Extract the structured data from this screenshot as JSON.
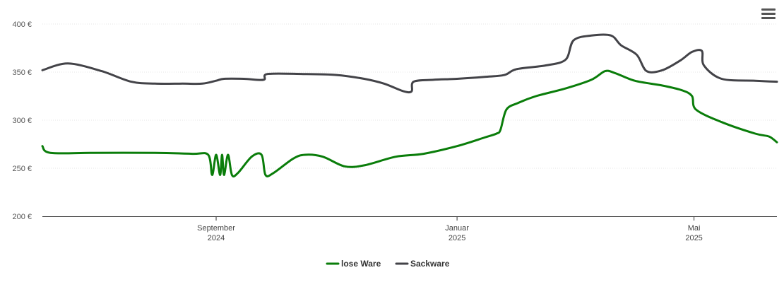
{
  "chart_data": {
    "type": "line",
    "title": "",
    "xlabel": "",
    "ylabel": "",
    "ylim": [
      200,
      400
    ],
    "yticks": [
      "200 €",
      "250 €",
      "300 €",
      "350 €",
      "400 €"
    ],
    "ytick_values": [
      200,
      250,
      300,
      350,
      400
    ],
    "xlim": [
      "2024-06-05",
      "2025-06-12"
    ],
    "xticks": [
      {
        "date": "2024-09-01",
        "label1": "September",
        "label2": "2024"
      },
      {
        "date": "2025-01-01",
        "label1": "Januar",
        "label2": "2025"
      },
      {
        "date": "2025-05-01",
        "label1": "Mai",
        "label2": "2025"
      }
    ],
    "grid": true,
    "legend": "bottom-center",
    "series": [
      {
        "name": "lose Ware",
        "color": "#0a7d0a",
        "points": [
          [
            "2024-06-05",
            273
          ],
          [
            "2024-06-09",
            266
          ],
          [
            "2024-07-01",
            266
          ],
          [
            "2024-08-01",
            266
          ],
          [
            "2024-08-20",
            265
          ],
          [
            "2024-08-28",
            264
          ],
          [
            "2024-08-30",
            243
          ],
          [
            "2024-09-01",
            264
          ],
          [
            "2024-09-03",
            243
          ],
          [
            "2024-09-04",
            264
          ],
          [
            "2024-09-05",
            243
          ],
          [
            "2024-09-07",
            264
          ],
          [
            "2024-09-09",
            243
          ],
          [
            "2024-09-12",
            245
          ],
          [
            "2024-09-19",
            262
          ],
          [
            "2024-09-24",
            264
          ],
          [
            "2024-09-26",
            243
          ],
          [
            "2024-09-30",
            245
          ],
          [
            "2024-10-10",
            260
          ],
          [
            "2024-10-16",
            264
          ],
          [
            "2024-10-25",
            262
          ],
          [
            "2024-11-05",
            252
          ],
          [
            "2024-11-15",
            253
          ],
          [
            "2024-12-01",
            262
          ],
          [
            "2024-12-15",
            265
          ],
          [
            "2025-01-01",
            273
          ],
          [
            "2025-01-15",
            282
          ],
          [
            "2025-01-21",
            286
          ],
          [
            "2025-01-23",
            290
          ],
          [
            "2025-01-26",
            311
          ],
          [
            "2025-02-01",
            318
          ],
          [
            "2025-02-10",
            325
          ],
          [
            "2025-02-25",
            333
          ],
          [
            "2025-03-10",
            342
          ],
          [
            "2025-03-17",
            351
          ],
          [
            "2025-03-22",
            349
          ],
          [
            "2025-04-01",
            341
          ],
          [
            "2025-04-15",
            336
          ],
          [
            "2025-04-25",
            331
          ],
          [
            "2025-04-30",
            325
          ],
          [
            "2025-05-02",
            311
          ],
          [
            "2025-05-15",
            298
          ],
          [
            "2025-06-01",
            286
          ],
          [
            "2025-06-08",
            283
          ],
          [
            "2025-06-12",
            277
          ]
        ]
      },
      {
        "name": "Sackware",
        "color": "#434348",
        "points": [
          [
            "2024-06-05",
            352
          ],
          [
            "2024-06-18",
            359
          ],
          [
            "2024-07-05",
            351
          ],
          [
            "2024-07-20",
            340
          ],
          [
            "2024-08-01",
            338
          ],
          [
            "2024-08-15",
            338
          ],
          [
            "2024-08-25",
            338
          ],
          [
            "2024-09-01",
            341
          ],
          [
            "2024-09-05",
            343
          ],
          [
            "2024-09-15",
            343
          ],
          [
            "2024-09-25",
            342
          ],
          [
            "2024-09-27",
            348
          ],
          [
            "2024-10-15",
            348
          ],
          [
            "2024-11-01",
            347
          ],
          [
            "2024-11-15",
            343
          ],
          [
            "2024-11-25",
            338
          ],
          [
            "2024-12-05",
            330
          ],
          [
            "2024-12-09",
            330
          ],
          [
            "2024-12-10",
            340
          ],
          [
            "2024-12-20",
            342
          ],
          [
            "2025-01-01",
            343
          ],
          [
            "2025-01-15",
            345
          ],
          [
            "2025-01-25",
            347
          ],
          [
            "2025-01-31",
            353
          ],
          [
            "2025-02-15",
            357
          ],
          [
            "2025-02-25",
            363
          ],
          [
            "2025-03-01",
            383
          ],
          [
            "2025-03-10",
            388
          ],
          [
            "2025-03-20",
            388
          ],
          [
            "2025-03-25",
            378
          ],
          [
            "2025-04-02",
            368
          ],
          [
            "2025-04-07",
            351
          ],
          [
            "2025-04-15",
            352
          ],
          [
            "2025-04-24",
            362
          ],
          [
            "2025-04-30",
            371
          ],
          [
            "2025-05-05",
            372
          ],
          [
            "2025-05-06",
            357
          ],
          [
            "2025-05-15",
            343
          ],
          [
            "2025-06-01",
            341
          ],
          [
            "2025-06-12",
            340
          ]
        ]
      }
    ]
  }
}
